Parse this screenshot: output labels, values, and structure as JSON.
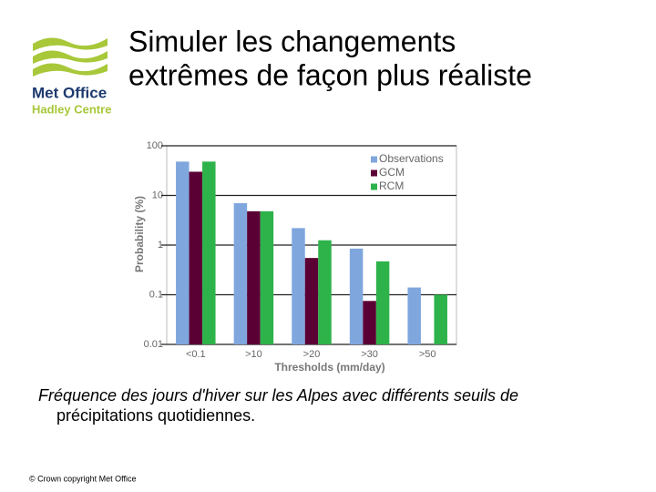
{
  "logo": {
    "name": "Met Office",
    "subname": "Hadley Centre"
  },
  "title_lines": [
    "Simuler les changements",
    "extrêmes de façon plus réaliste"
  ],
  "caption_lines": [
    "Fréquence des jours d'hiver sur les Alpes avec différents seuils de",
    "précipitations quotidiennes."
  ],
  "footer": "© Crown copyright   Met Office",
  "chart_data": {
    "type": "bar",
    "y_label": "Probability (%)",
    "x_label": "Thresholds (mm/day)",
    "categories": [
      "<0.1",
      ">10",
      ">20",
      ">30",
      ">50"
    ],
    "series": [
      {
        "name": "Observations",
        "color": "#7fa7de",
        "values": [
          48,
          7,
          2.2,
          0.85,
          0.14
        ]
      },
      {
        "name": "GCM",
        "color": "#5b0035",
        "values": [
          30,
          4.8,
          0.55,
          0.075,
          null
        ]
      },
      {
        "name": "RCM",
        "color": "#2eb34b",
        "values": [
          48,
          4.8,
          1.25,
          0.47,
          0.1
        ]
      }
    ],
    "log_scale": true,
    "ylim": [
      0.01,
      100
    ],
    "yticks": [
      100,
      10,
      1,
      0.1,
      0.01
    ],
    "grid": true,
    "legend": "top-right"
  }
}
